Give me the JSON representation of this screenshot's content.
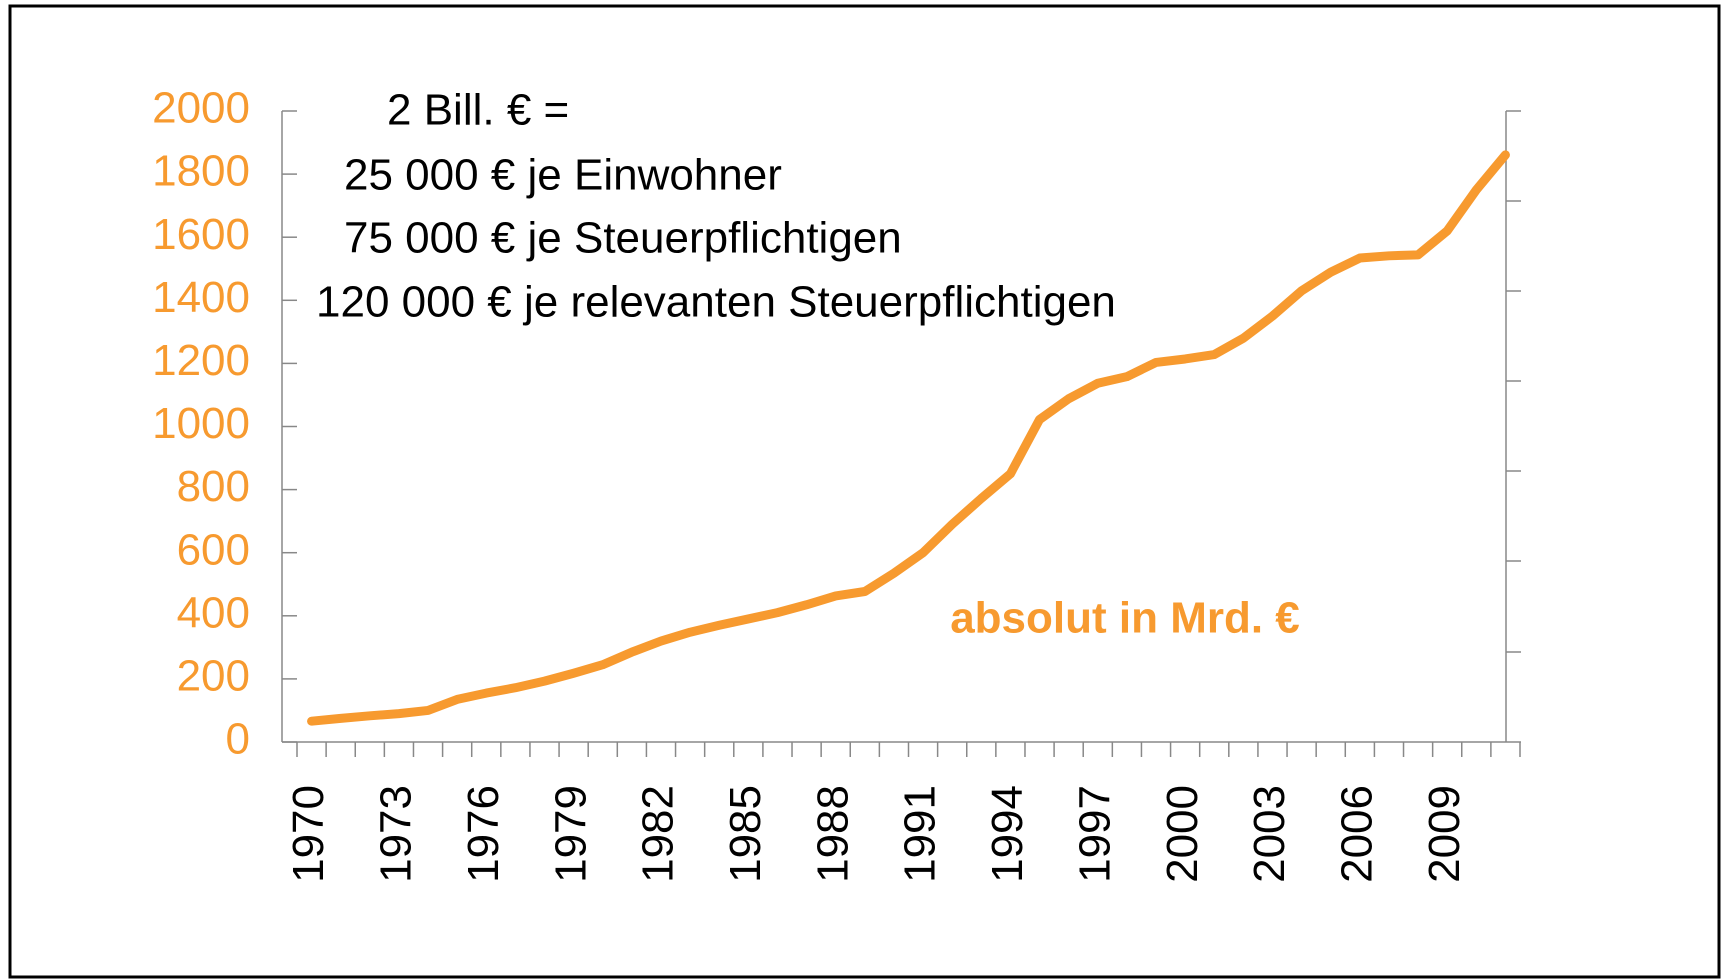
{
  "chart_data": {
    "type": "line",
    "annotations": [
      "2 Bill. € =",
      "25 000 € je Einwohner",
      "75 000 € je Steuerpflichtigen",
      "120 000 € je relevanten Steuerpflichtigen"
    ],
    "categories": [
      "1970",
      null,
      null,
      "1973",
      null,
      null,
      "1976",
      null,
      null,
      "1979",
      null,
      null,
      "1982",
      null,
      null,
      "1985",
      null,
      null,
      "1988",
      null,
      null,
      "1991",
      null,
      null,
      "1994",
      null,
      null,
      "1997",
      null,
      null,
      "2000",
      null,
      null,
      "2003",
      null,
      null,
      "2006",
      null,
      null,
      "2009",
      null,
      null
    ],
    "series": [
      {
        "name": "absolut in Mrd. €",
        "color": "#f79a2f",
        "values": [
          66,
          75,
          83,
          90,
          100,
          135,
          155,
          172,
          193,
          218,
          245,
          285,
          320,
          348,
          370,
          390,
          410,
          435,
          463,
          477,
          535,
          600,
          690,
          772,
          850,
          1022,
          1088,
          1137,
          1158,
          1203,
          1214,
          1228,
          1280,
          1350,
          1430,
          1489,
          1534,
          1541,
          1544,
          1620,
          1750,
          1861
        ]
      }
    ],
    "ylim": [
      0,
      2000
    ],
    "yticks": [
      0,
      200,
      400,
      600,
      800,
      1000,
      1200,
      1400,
      1600,
      1800,
      2000
    ],
    "tick_color": "#f79a2f"
  }
}
